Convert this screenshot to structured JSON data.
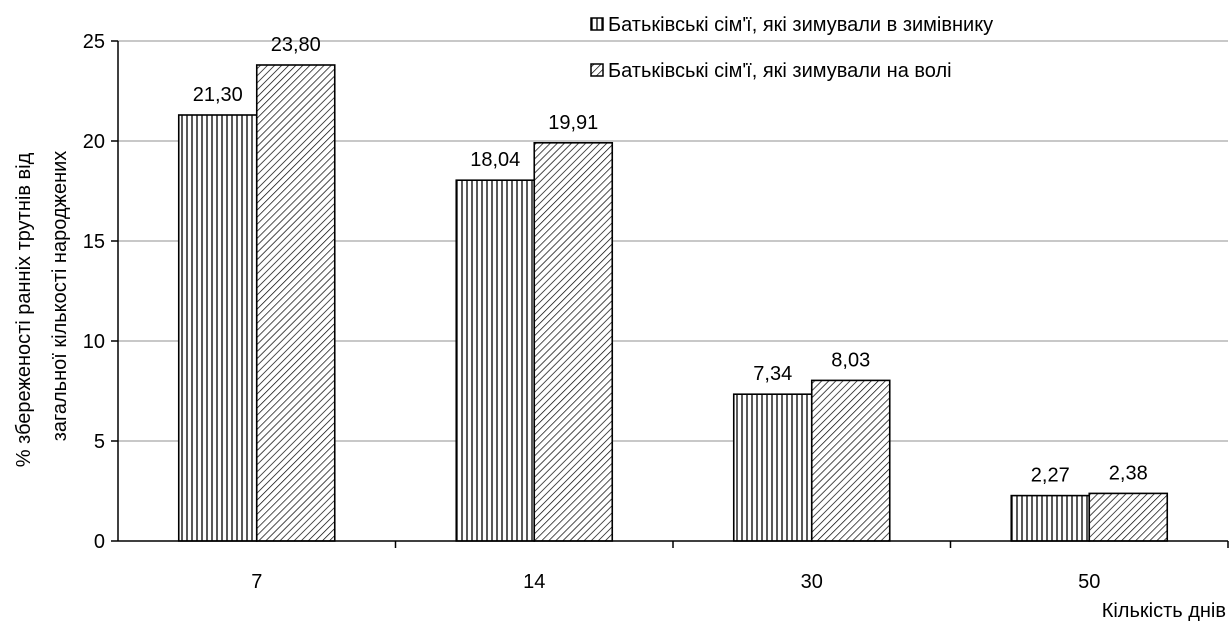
{
  "chart_data": {
    "type": "bar",
    "categories": [
      "7",
      "14",
      "30",
      "50"
    ],
    "series": [
      {
        "name": "Батьківські сім'ї, які зимували в зимівнику",
        "pattern": "vertical-lines",
        "values": [
          21.3,
          18.04,
          7.34,
          2.27
        ],
        "labels": [
          "21,30",
          "18,04",
          "7,34",
          "2,27"
        ]
      },
      {
        "name": "Батьківські сім'ї, які зимували на волі",
        "pattern": "diagonal-lines",
        "values": [
          23.8,
          19.91,
          8.03,
          2.38
        ],
        "labels": [
          "23,80",
          "19,91",
          "8,03",
          "2,38"
        ]
      }
    ],
    "ylim": [
      0,
      25
    ],
    "yticks": [
      0,
      5,
      10,
      15,
      20,
      25
    ],
    "ylabel_line1": "% збереженості ранніх трутнів від",
    "ylabel_line2": "загальної кількості народжених",
    "xlabel": "Кількість днів",
    "grid": "horizontal",
    "legend_position": "top-right",
    "colors": {
      "bar_fill": "#ffffff",
      "stroke": "#000000",
      "grid": "#a6a6a6"
    }
  }
}
